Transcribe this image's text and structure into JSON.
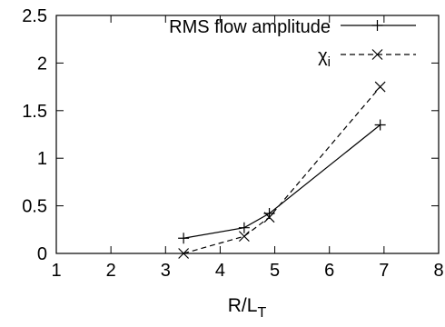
{
  "chart_data": {
    "type": "line",
    "title": "",
    "xlabel": "R/L",
    "xlabel_subscript": "T",
    "ylabel": "",
    "xlim": [
      1,
      8
    ],
    "ylim": [
      0,
      2.5
    ],
    "x_ticks": [
      "1",
      "2",
      "3",
      "4",
      "5",
      "6",
      "7",
      "8"
    ],
    "y_ticks": [
      "0",
      "0.5",
      "1",
      "1.5",
      "2",
      "2.5"
    ],
    "grid": false,
    "legend_position": "top-right",
    "series": [
      {
        "name": "RMS flow amplitude",
        "line_style": "solid",
        "marker": "plus",
        "x": [
          3.33,
          4.44,
          4.9,
          6.93
        ],
        "y": [
          0.16,
          0.27,
          0.42,
          1.35
        ]
      },
      {
        "name": "χi",
        "name_main": "χ",
        "name_sub": "i",
        "line_style": "dashed",
        "marker": "cross",
        "x": [
          3.33,
          4.44,
          4.9,
          6.93
        ],
        "y": [
          0.0,
          0.18,
          0.38,
          1.75
        ]
      }
    ]
  }
}
